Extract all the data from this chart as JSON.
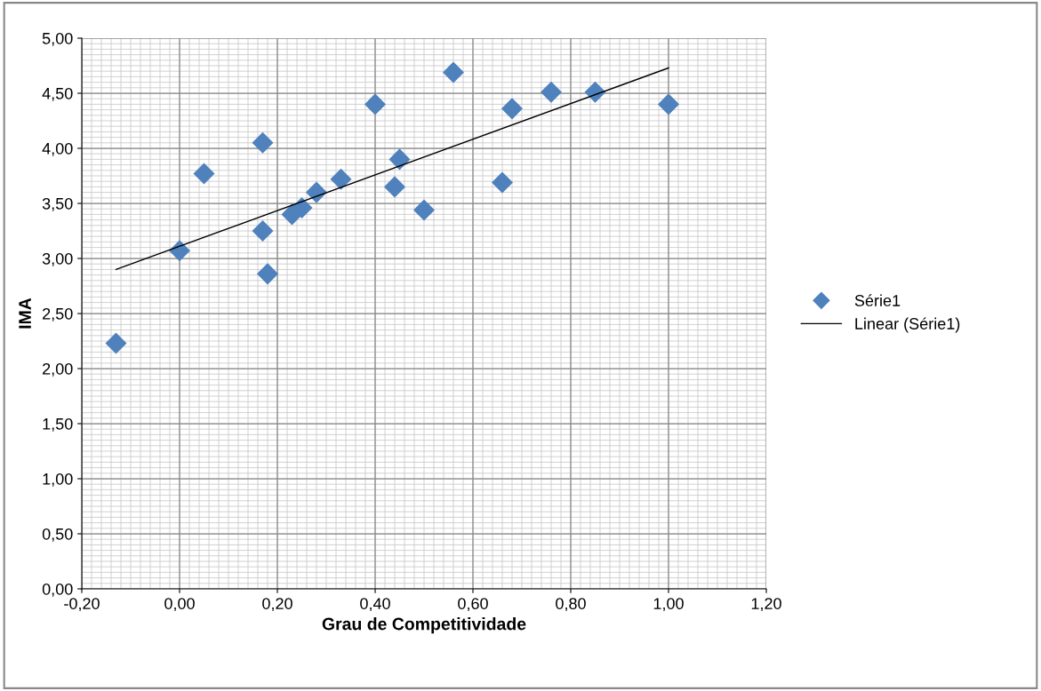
{
  "chart_data": {
    "type": "scatter",
    "xlabel": "Grau de Competitividade",
    "ylabel": "IMA",
    "series": [
      {
        "name": "Série1",
        "color": "#4f81bd",
        "marker": "diamond",
        "x": [
          -0.13,
          0.0,
          0.05,
          0.17,
          0.17,
          0.18,
          0.23,
          0.25,
          0.28,
          0.33,
          0.4,
          0.44,
          0.45,
          0.5,
          0.56,
          0.66,
          0.68,
          0.76,
          0.85,
          1.0
        ],
        "values": [
          2.23,
          3.07,
          3.77,
          4.05,
          3.25,
          2.86,
          3.4,
          3.46,
          3.6,
          3.72,
          4.4,
          3.65,
          3.9,
          3.44,
          4.69,
          3.69,
          4.36,
          4.51,
          4.51,
          4.4
        ]
      },
      {
        "name": "Linear (Série1)",
        "type": "line",
        "color": "#000000",
        "marker": "none",
        "line_style": "solid",
        "x": [
          -0.13,
          1.0
        ],
        "values": [
          2.9,
          4.73
        ]
      }
    ],
    "xlim": [
      -0.2,
      1.2
    ],
    "ylim": [
      0,
      5
    ],
    "xticks": [
      {
        "value": -0.2,
        "label": "-0,20"
      },
      {
        "value": 0,
        "label": "0,00"
      },
      {
        "value": 0.2,
        "label": "0,20"
      },
      {
        "value": 0.4,
        "label": "0,40"
      },
      {
        "value": 0.6,
        "label": "0,60"
      },
      {
        "value": 0.8,
        "label": "0,80"
      },
      {
        "value": 1.0,
        "label": "1,00"
      },
      {
        "value": 1.2,
        "label": "1,20"
      }
    ],
    "yticks": [
      {
        "value": 0,
        "label": "0,00"
      },
      {
        "value": 0.5,
        "label": "0,50"
      },
      {
        "value": 1.0,
        "label": "1,00"
      },
      {
        "value": 1.5,
        "label": "1,50"
      },
      {
        "value": 2.0,
        "label": "2,00"
      },
      {
        "value": 2.5,
        "label": "2,50"
      },
      {
        "value": 3.0,
        "label": "3,00"
      },
      {
        "value": 3.5,
        "label": "3,50"
      },
      {
        "value": 4.0,
        "label": "4,00"
      },
      {
        "value": 4.5,
        "label": "4,50"
      },
      {
        "value": 5.0,
        "label": "5,00"
      }
    ],
    "grid": true,
    "legend": "right"
  }
}
